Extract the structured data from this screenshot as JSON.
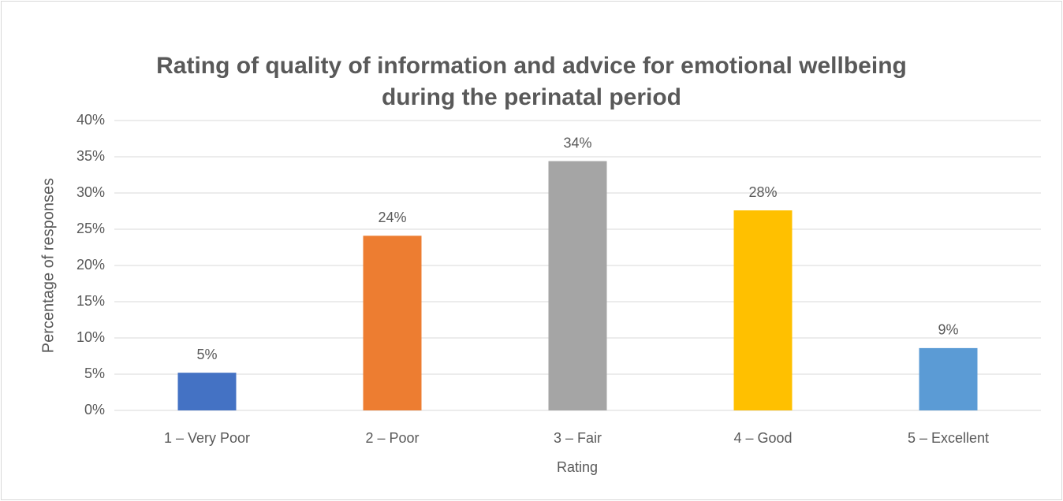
{
  "chart_data": {
    "type": "bar",
    "title": "Rating of quality of information and advice for emotional wellbeing during the perinatal period",
    "xlabel": "Rating",
    "ylabel": "Percentage of responses",
    "categories": [
      "1 – Very Poor",
      "2 – Poor",
      "3 – Fair",
      "4 – Good",
      "5 – Excellent"
    ],
    "values": [
      5.2,
      24.1,
      34.4,
      27.6,
      8.6
    ],
    "value_labels": [
      "5%",
      "24%",
      "34%",
      "28%",
      "9%"
    ],
    "colors": [
      "#4472c4",
      "#ed7d31",
      "#a5a5a5",
      "#ffc000",
      "#5b9bd5"
    ],
    "ylim": [
      0,
      40
    ],
    "yticks": [
      {
        "value": 0,
        "label": "0%"
      },
      {
        "value": 5,
        "label": "5%"
      },
      {
        "value": 10,
        "label": "10%"
      },
      {
        "value": 15,
        "label": "15%"
      },
      {
        "value": 20,
        "label": "20%"
      },
      {
        "value": 25,
        "label": "25%"
      },
      {
        "value": 30,
        "label": "30%"
      },
      {
        "value": 35,
        "label": "35%"
      },
      {
        "value": 40,
        "label": "40%"
      }
    ],
    "grid": true
  }
}
